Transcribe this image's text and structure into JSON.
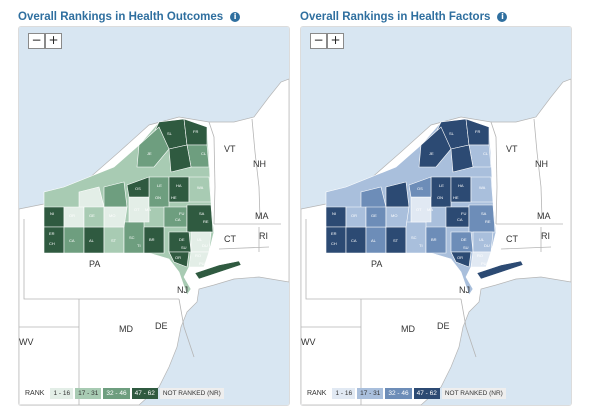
{
  "panels": [
    {
      "title": "Overall Rankings in Health Outcomes",
      "zoom_out": "−",
      "zoom_in": "+",
      "legend_label": "RANK",
      "legend": [
        {
          "label": "1 - 16",
          "color": "#e3eee7",
          "text": "#333333"
        },
        {
          "label": "17 - 31",
          "color": "#a8cbb3",
          "text": "#333333"
        },
        {
          "label": "32 - 46",
          "color": "#6e9e7f",
          "text": "#ffffff"
        },
        {
          "label": "47 - 62",
          "color": "#2f5a40",
          "text": "#ffffff"
        },
        {
          "label": "NOT RANKED (NR)",
          "color": "#eeeeee",
          "text": "#333333"
        }
      ]
    },
    {
      "title": "Overall Rankings in Health Factors",
      "zoom_out": "−",
      "zoom_in": "+",
      "legend_label": "RANK",
      "legend": [
        {
          "label": "1 - 16",
          "color": "#e1e9f3",
          "text": "#333333"
        },
        {
          "label": "17 - 31",
          "color": "#a9bfdc",
          "text": "#333333"
        },
        {
          "label": "32 - 46",
          "color": "#6d8db8",
          "text": "#ffffff"
        },
        {
          "label": "47 - 62",
          "color": "#2c4a73",
          "text": "#ffffff"
        },
        {
          "label": "NOT RANKED (NR)",
          "color": "#eeeeee",
          "text": "#333333"
        }
      ]
    }
  ],
  "state_labels": {
    "vt": "VT",
    "nh": "NH",
    "ma": "MA",
    "ct": "CT",
    "ri": "RI",
    "pa": "PA",
    "nj": "NJ",
    "md": "MD",
    "de": "DE",
    "wv": "WV"
  },
  "county_labels": [
    "SL",
    "FR",
    "CL",
    "JE",
    "LE",
    "HA",
    "WA",
    "OS",
    "ON",
    "HE",
    "FU",
    "SA",
    "NI",
    "OR",
    "GE",
    "MO",
    "OT",
    "MA",
    "CA",
    "ER",
    "CH",
    "CA",
    "AL",
    "ST",
    "SC",
    "TI",
    "BR",
    "DE",
    "SU",
    "UL",
    "OR",
    "RO",
    "PU",
    "DU",
    "RE"
  ],
  "colors": {
    "water": "#d8e6f2",
    "land": "#ffffff",
    "state_border": "#b5b5b5"
  }
}
